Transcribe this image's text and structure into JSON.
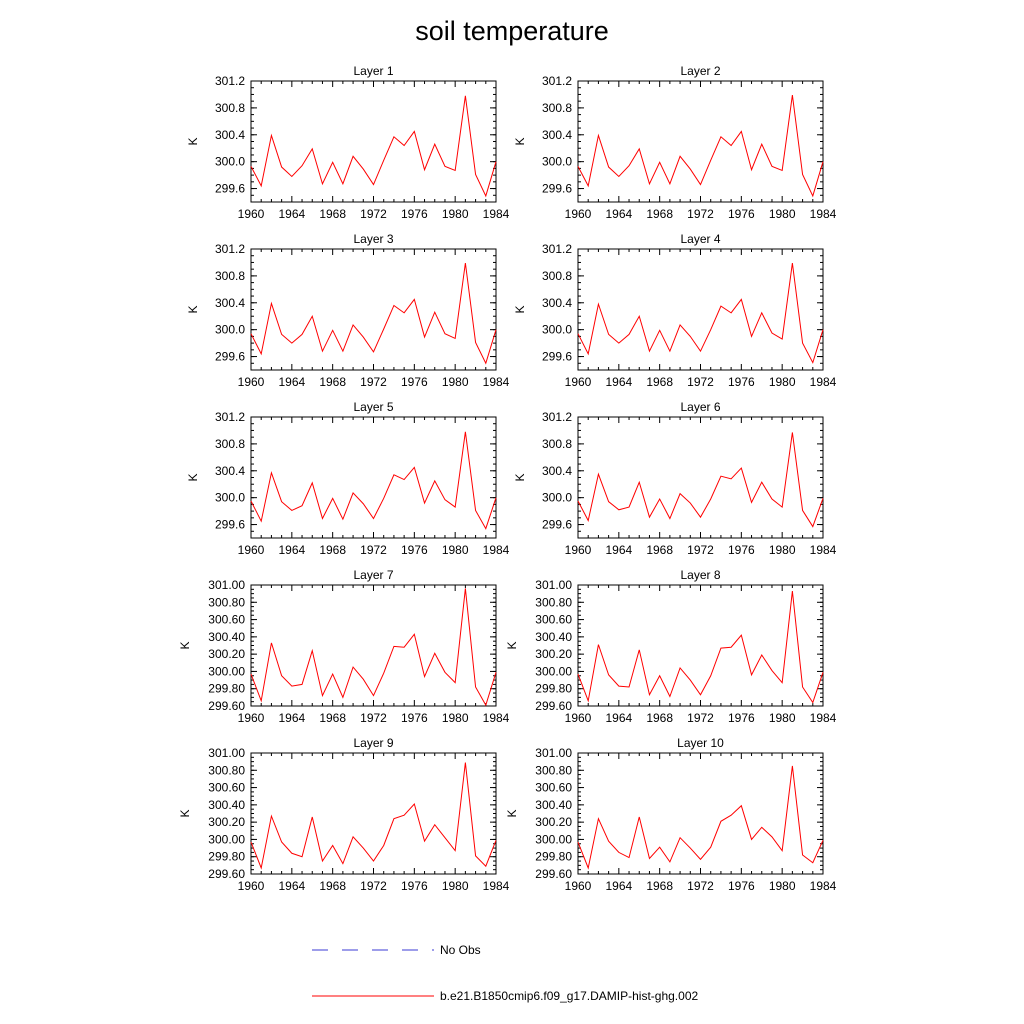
{
  "figure": {
    "title": "soil temperature",
    "legend": [
      {
        "label": "No Obs",
        "color": "#3b3bd6",
        "style": "dashed"
      },
      {
        "label": "b.e21.B1850cmip6.f09_g17.DAMIP-hist-ghg.002",
        "color": "#ff0000",
        "style": "solid"
      }
    ]
  },
  "chart_data": [
    {
      "type": "line",
      "title": "Layer 1",
      "ylabel": "K",
      "xlim": [
        1960,
        1984
      ],
      "ylim": [
        299.4,
        301.2
      ],
      "xticks": [
        1960,
        1964,
        1968,
        1972,
        1976,
        1980,
        1984
      ],
      "yticks": [
        "299.6",
        "300.0",
        "300.4",
        "300.8",
        "301.2"
      ],
      "yticks_values": [
        299.6,
        300.0,
        300.4,
        300.8,
        301.2
      ],
      "x": [
        1960,
        1961,
        1962,
        1963,
        1964,
        1965,
        1966,
        1967,
        1968,
        1969,
        1970,
        1971,
        1972,
        1973,
        1974,
        1975,
        1976,
        1977,
        1978,
        1979,
        1980,
        1981,
        1982,
        1983,
        1984
      ],
      "series": [
        {
          "name": "b.e21.B1850cmip6.f09_g17.DAMIP-hist-ghg.002",
          "color": "#ff0000",
          "values": [
            299.93,
            299.64,
            300.39,
            299.92,
            299.78,
            299.94,
            300.19,
            299.67,
            299.99,
            299.67,
            300.08,
            299.89,
            299.66,
            300.02,
            300.37,
            300.24,
            300.45,
            299.88,
            300.26,
            299.93,
            299.87,
            300.98,
            299.81,
            299.49,
            300.0
          ]
        }
      ]
    },
    {
      "type": "line",
      "title": "Layer 2",
      "ylabel": "K",
      "xlim": [
        1960,
        1984
      ],
      "ylim": [
        299.4,
        301.2
      ],
      "xticks": [
        1960,
        1964,
        1968,
        1972,
        1976,
        1980,
        1984
      ],
      "yticks": [
        "299.6",
        "300.0",
        "300.4",
        "300.8",
        "301.2"
      ],
      "yticks_values": [
        299.6,
        300.0,
        300.4,
        300.8,
        301.2
      ],
      "x": [
        1960,
        1961,
        1962,
        1963,
        1964,
        1965,
        1966,
        1967,
        1968,
        1969,
        1970,
        1971,
        1972,
        1973,
        1974,
        1975,
        1976,
        1977,
        1978,
        1979,
        1980,
        1981,
        1982,
        1983,
        1984
      ],
      "series": [
        {
          "name": "b.e21.B1850cmip6.f09_g17.DAMIP-hist-ghg.002",
          "color": "#ff0000",
          "values": [
            299.93,
            299.64,
            300.39,
            299.92,
            299.78,
            299.94,
            300.19,
            299.67,
            299.99,
            299.67,
            300.08,
            299.89,
            299.66,
            300.02,
            300.37,
            300.24,
            300.45,
            299.88,
            300.26,
            299.93,
            299.87,
            300.99,
            299.81,
            299.49,
            300.0
          ]
        }
      ]
    },
    {
      "type": "line",
      "title": "Layer 3",
      "ylabel": "K",
      "xlim": [
        1960,
        1984
      ],
      "ylim": [
        299.4,
        301.2
      ],
      "xticks": [
        1960,
        1964,
        1968,
        1972,
        1976,
        1980,
        1984
      ],
      "yticks": [
        "299.6",
        "300.0",
        "300.4",
        "300.8",
        "301.2"
      ],
      "yticks_values": [
        299.6,
        300.0,
        300.4,
        300.8,
        301.2
      ],
      "x": [
        1960,
        1961,
        1962,
        1963,
        1964,
        1965,
        1966,
        1967,
        1968,
        1969,
        1970,
        1971,
        1972,
        1973,
        1974,
        1975,
        1976,
        1977,
        1978,
        1979,
        1980,
        1981,
        1982,
        1983,
        1984
      ],
      "series": [
        {
          "name": "b.e21.B1850cmip6.f09_g17.DAMIP-hist-ghg.002",
          "color": "#ff0000",
          "values": [
            299.94,
            299.64,
            300.39,
            299.93,
            299.8,
            299.93,
            300.2,
            299.68,
            299.99,
            299.68,
            300.07,
            299.89,
            299.67,
            300.01,
            300.36,
            300.25,
            300.45,
            299.89,
            300.26,
            299.94,
            299.87,
            300.99,
            299.81,
            299.5,
            300.0
          ]
        }
      ]
    },
    {
      "type": "line",
      "title": "Layer 4",
      "ylabel": "K",
      "xlim": [
        1960,
        1984
      ],
      "ylim": [
        299.4,
        301.2
      ],
      "xticks": [
        1960,
        1964,
        1968,
        1972,
        1976,
        1980,
        1984
      ],
      "yticks": [
        "299.6",
        "300.0",
        "300.4",
        "300.8",
        "301.2"
      ],
      "yticks_values": [
        299.6,
        300.0,
        300.4,
        300.8,
        301.2
      ],
      "x": [
        1960,
        1961,
        1962,
        1963,
        1964,
        1965,
        1966,
        1967,
        1968,
        1969,
        1970,
        1971,
        1972,
        1973,
        1974,
        1975,
        1976,
        1977,
        1978,
        1979,
        1980,
        1981,
        1982,
        1983,
        1984
      ],
      "series": [
        {
          "name": "b.e21.B1850cmip6.f09_g17.DAMIP-hist-ghg.002",
          "color": "#ff0000",
          "values": [
            299.94,
            299.64,
            300.38,
            299.93,
            299.8,
            299.93,
            300.2,
            299.68,
            299.99,
            299.68,
            300.07,
            299.9,
            299.68,
            300.0,
            300.35,
            300.25,
            300.45,
            299.9,
            300.25,
            299.95,
            299.86,
            300.99,
            299.8,
            299.51,
            300.0
          ]
        }
      ]
    },
    {
      "type": "line",
      "title": "Layer 5",
      "ylabel": "K",
      "xlim": [
        1960,
        1984
      ],
      "ylim": [
        299.4,
        301.2
      ],
      "xticks": [
        1960,
        1964,
        1968,
        1972,
        1976,
        1980,
        1984
      ],
      "yticks": [
        "299.6",
        "300.0",
        "300.4",
        "300.8",
        "301.2"
      ],
      "yticks_values": [
        299.6,
        300.0,
        300.4,
        300.8,
        301.2
      ],
      "x": [
        1960,
        1961,
        1962,
        1963,
        1964,
        1965,
        1966,
        1967,
        1968,
        1969,
        1970,
        1971,
        1972,
        1973,
        1974,
        1975,
        1976,
        1977,
        1978,
        1979,
        1980,
        1981,
        1982,
        1983,
        1984
      ],
      "series": [
        {
          "name": "b.e21.B1850cmip6.f09_g17.DAMIP-hist-ghg.002",
          "color": "#ff0000",
          "values": [
            299.95,
            299.65,
            300.37,
            299.94,
            299.81,
            299.88,
            300.22,
            299.69,
            299.99,
            299.68,
            300.07,
            299.91,
            299.69,
            299.99,
            300.34,
            300.27,
            300.45,
            299.92,
            300.25,
            299.97,
            299.86,
            300.98,
            299.81,
            299.54,
            300.0
          ]
        }
      ]
    },
    {
      "type": "line",
      "title": "Layer 6",
      "ylabel": "K",
      "xlim": [
        1960,
        1984
      ],
      "ylim": [
        299.4,
        301.2
      ],
      "xticks": [
        1960,
        1964,
        1968,
        1972,
        1976,
        1980,
        1984
      ],
      "yticks": [
        "299.6",
        "300.0",
        "300.4",
        "300.8",
        "301.2"
      ],
      "yticks_values": [
        299.6,
        300.0,
        300.4,
        300.8,
        301.2
      ],
      "x": [
        1960,
        1961,
        1962,
        1963,
        1964,
        1965,
        1966,
        1967,
        1968,
        1969,
        1970,
        1971,
        1972,
        1973,
        1974,
        1975,
        1976,
        1977,
        1978,
        1979,
        1980,
        1981,
        1982,
        1983,
        1984
      ],
      "series": [
        {
          "name": "b.e21.B1850cmip6.f09_g17.DAMIP-hist-ghg.002",
          "color": "#ff0000",
          "values": [
            299.95,
            299.66,
            300.35,
            299.94,
            299.82,
            299.86,
            300.23,
            299.71,
            299.98,
            299.69,
            300.06,
            299.92,
            299.71,
            299.98,
            300.32,
            300.28,
            300.44,
            299.93,
            300.23,
            299.98,
            299.86,
            300.97,
            299.81,
            299.57,
            299.99
          ]
        }
      ]
    },
    {
      "type": "line",
      "title": "Layer 7",
      "ylabel": "K",
      "xlim": [
        1960,
        1984
      ],
      "ylim": [
        299.6,
        301.0
      ],
      "xticks": [
        1960,
        1964,
        1968,
        1972,
        1976,
        1980,
        1984
      ],
      "yticks": [
        "299.60",
        "299.80",
        "300.00",
        "300.20",
        "300.40",
        "300.60",
        "300.80",
        "301.00"
      ],
      "yticks_values": [
        299.6,
        299.8,
        300.0,
        300.2,
        300.4,
        300.6,
        300.8,
        301.0
      ],
      "x": [
        1960,
        1961,
        1962,
        1963,
        1964,
        1965,
        1966,
        1967,
        1968,
        1969,
        1970,
        1971,
        1972,
        1973,
        1974,
        1975,
        1976,
        1977,
        1978,
        1979,
        1980,
        1981,
        1982,
        1983,
        1984
      ],
      "series": [
        {
          "name": "b.e21.B1850cmip6.f09_g17.DAMIP-hist-ghg.002",
          "color": "#ff0000",
          "values": [
            299.97,
            299.66,
            300.33,
            299.95,
            299.83,
            299.85,
            300.24,
            299.72,
            299.97,
            299.7,
            300.05,
            299.91,
            299.72,
            299.98,
            300.29,
            300.28,
            300.43,
            299.94,
            300.21,
            299.99,
            299.87,
            300.96,
            299.82,
            299.61,
            299.99
          ]
        }
      ]
    },
    {
      "type": "line",
      "title": "Layer 8",
      "ylabel": "K",
      "xlim": [
        1960,
        1984
      ],
      "ylim": [
        299.6,
        301.0
      ],
      "xticks": [
        1960,
        1964,
        1968,
        1972,
        1976,
        1980,
        1984
      ],
      "yticks": [
        "299.60",
        "299.80",
        "300.00",
        "300.20",
        "300.40",
        "300.60",
        "300.80",
        "301.00"
      ],
      "yticks_values": [
        299.6,
        299.8,
        300.0,
        300.2,
        300.4,
        300.6,
        300.8,
        301.0
      ],
      "x": [
        1960,
        1961,
        1962,
        1963,
        1964,
        1965,
        1966,
        1967,
        1968,
        1969,
        1970,
        1971,
        1972,
        1973,
        1974,
        1975,
        1976,
        1977,
        1978,
        1979,
        1980,
        1981,
        1982,
        1983,
        1984
      ],
      "series": [
        {
          "name": "b.e21.B1850cmip6.f09_g17.DAMIP-hist-ghg.002",
          "color": "#ff0000",
          "values": [
            299.97,
            299.66,
            300.31,
            299.96,
            299.83,
            299.82,
            300.25,
            299.73,
            299.95,
            299.71,
            300.04,
            299.9,
            299.73,
            299.95,
            300.27,
            300.28,
            300.42,
            299.96,
            300.19,
            300.01,
            299.87,
            300.93,
            299.82,
            299.64,
            299.99
          ]
        }
      ]
    },
    {
      "type": "line",
      "title": "Layer 9",
      "ylabel": "K",
      "xlim": [
        1960,
        1984
      ],
      "ylim": [
        299.6,
        301.0
      ],
      "xticks": [
        1960,
        1964,
        1968,
        1972,
        1976,
        1980,
        1984
      ],
      "yticks": [
        "299.60",
        "299.80",
        "300.00",
        "300.20",
        "300.40",
        "300.60",
        "300.80",
        "301.00"
      ],
      "yticks_values": [
        299.6,
        299.8,
        300.0,
        300.2,
        300.4,
        300.6,
        300.8,
        301.0
      ],
      "x": [
        1960,
        1961,
        1962,
        1963,
        1964,
        1965,
        1966,
        1967,
        1968,
        1969,
        1970,
        1971,
        1972,
        1973,
        1974,
        1975,
        1976,
        1977,
        1978,
        1979,
        1980,
        1981,
        1982,
        1983,
        1984
      ],
      "series": [
        {
          "name": "b.e21.B1850cmip6.f09_g17.DAMIP-hist-ghg.002",
          "color": "#ff0000",
          "values": [
            299.97,
            299.67,
            300.27,
            299.97,
            299.84,
            299.8,
            300.26,
            299.75,
            299.93,
            299.72,
            300.03,
            299.9,
            299.75,
            299.93,
            300.24,
            300.28,
            300.41,
            299.98,
            300.17,
            300.02,
            299.87,
            300.89,
            299.81,
            299.69,
            299.99
          ]
        }
      ]
    },
    {
      "type": "line",
      "title": "Layer 10",
      "ylabel": "K",
      "xlim": [
        1960,
        1984
      ],
      "ylim": [
        299.6,
        301.0
      ],
      "xticks": [
        1960,
        1964,
        1968,
        1972,
        1976,
        1980,
        1984
      ],
      "yticks": [
        "299.60",
        "299.80",
        "300.00",
        "300.20",
        "300.40",
        "300.60",
        "300.80",
        "301.00"
      ],
      "yticks_values": [
        299.6,
        299.8,
        300.0,
        300.2,
        300.4,
        300.6,
        300.8,
        301.0
      ],
      "x": [
        1960,
        1961,
        1962,
        1963,
        1964,
        1965,
        1966,
        1967,
        1968,
        1969,
        1970,
        1971,
        1972,
        1973,
        1974,
        1975,
        1976,
        1977,
        1978,
        1979,
        1980,
        1981,
        1982,
        1983,
        1984
      ],
      "series": [
        {
          "name": "b.e21.B1850cmip6.f09_g17.DAMIP-hist-ghg.002",
          "color": "#ff0000",
          "values": [
            299.97,
            299.67,
            300.24,
            299.98,
            299.85,
            299.79,
            300.26,
            299.78,
            299.91,
            299.74,
            300.02,
            299.9,
            299.77,
            299.91,
            300.21,
            300.28,
            300.39,
            300.0,
            300.14,
            300.03,
            299.87,
            300.85,
            299.82,
            299.73,
            299.99
          ]
        }
      ]
    }
  ]
}
